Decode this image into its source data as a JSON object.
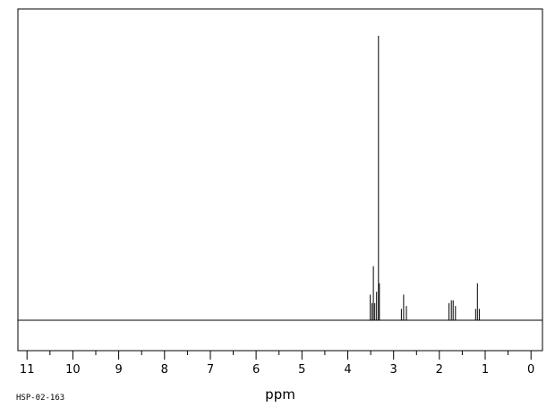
{
  "sample_id": "HSP-02-163",
  "chart_data": {
    "type": "line",
    "title": "",
    "xlabel": "ppm",
    "ylabel": "",
    "x_reversed": true,
    "xlim": [
      11.2,
      -0.25
    ],
    "ylim": [
      0,
      1
    ],
    "grid": false,
    "ticks": [
      {
        "value": 11,
        "label": "11"
      },
      {
        "value": 10,
        "label": "10"
      },
      {
        "value": 9,
        "label": "9"
      },
      {
        "value": 8,
        "label": "8"
      },
      {
        "value": 7,
        "label": "7"
      },
      {
        "value": 6,
        "label": "6"
      },
      {
        "value": 5,
        "label": "5"
      },
      {
        "value": 4,
        "label": "4"
      },
      {
        "value": 3,
        "label": "3"
      },
      {
        "value": 2,
        "label": "2"
      },
      {
        "value": 1,
        "label": "1"
      },
      {
        "value": 0,
        "label": "0"
      }
    ],
    "peaks": [
      {
        "ppm": 3.51,
        "height": 0.09
      },
      {
        "ppm": 3.47,
        "height": 0.06
      },
      {
        "ppm": 3.44,
        "height": 0.19
      },
      {
        "ppm": 3.41,
        "height": 0.06
      },
      {
        "ppm": 3.37,
        "height": 0.1
      },
      {
        "ppm": 3.33,
        "height": 1.0
      },
      {
        "ppm": 3.31,
        "height": 0.13
      },
      {
        "ppm": 2.83,
        "height": 0.04
      },
      {
        "ppm": 2.78,
        "height": 0.09
      },
      {
        "ppm": 2.72,
        "height": 0.05
      },
      {
        "ppm": 1.79,
        "height": 0.06
      },
      {
        "ppm": 1.74,
        "height": 0.07
      },
      {
        "ppm": 1.7,
        "height": 0.07
      },
      {
        "ppm": 1.65,
        "height": 0.05
      },
      {
        "ppm": 1.21,
        "height": 0.04
      },
      {
        "ppm": 1.17,
        "height": 0.13
      },
      {
        "ppm": 1.13,
        "height": 0.04
      }
    ]
  }
}
